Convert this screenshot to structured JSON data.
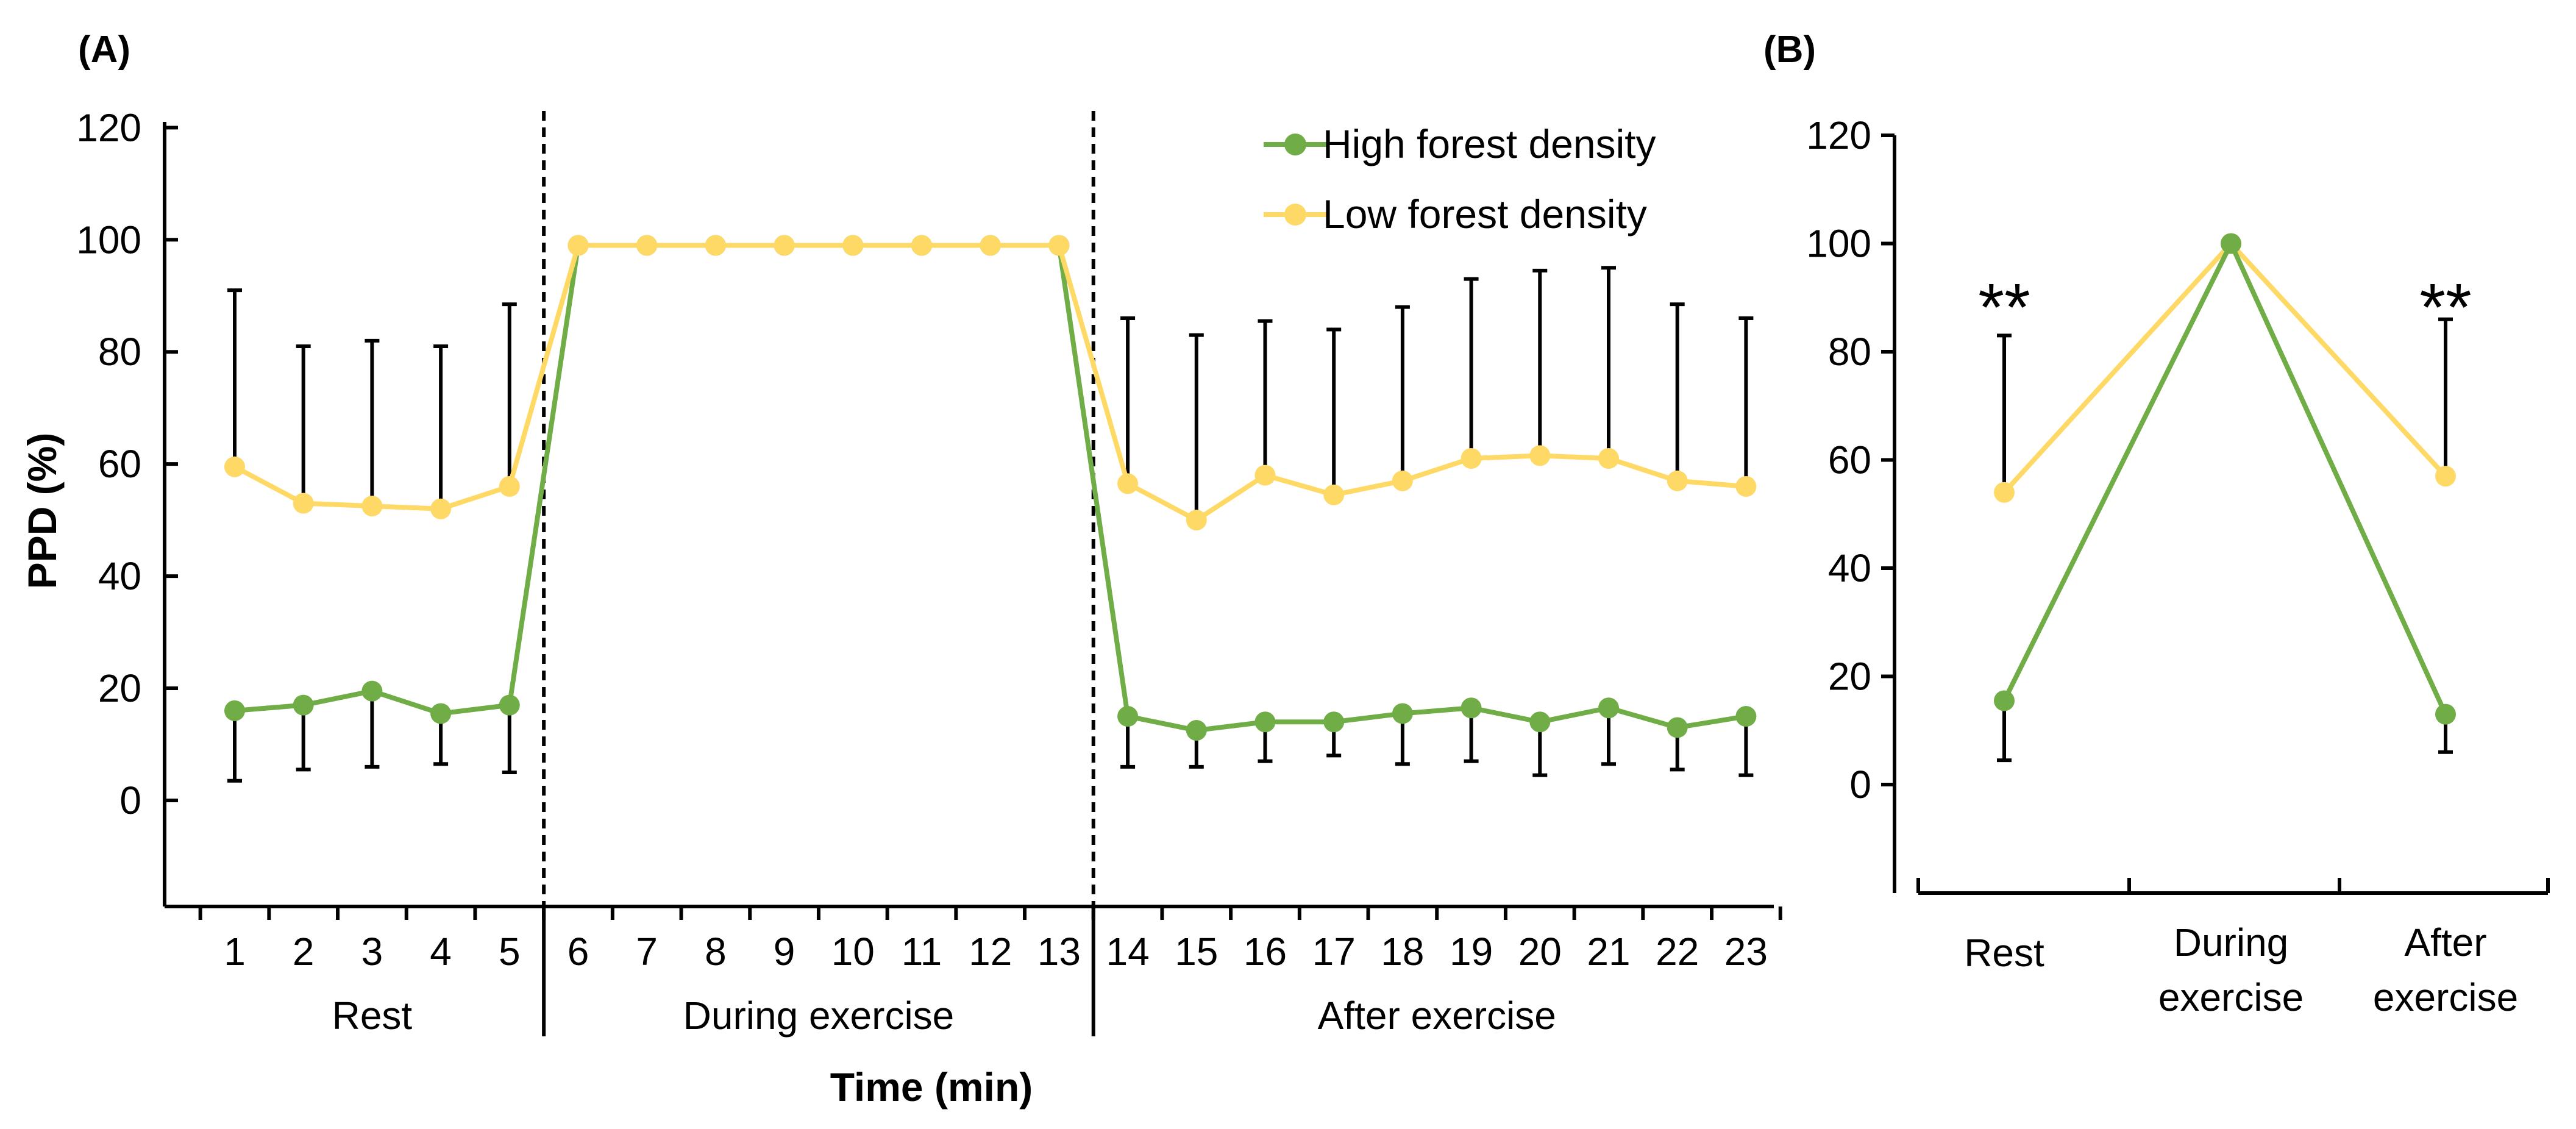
{
  "chart_data": [
    {
      "panel": "(A)",
      "type": "line",
      "ylabel": "PPD (%)",
      "xlabel": "Time (min)",
      "ylim": [
        -20,
        120
      ],
      "yticks": [
        0,
        20,
        40,
        60,
        80,
        100,
        120
      ],
      "x": [
        1,
        2,
        3,
        4,
        5,
        6,
        7,
        8,
        9,
        10,
        11,
        12,
        13,
        14,
        15,
        16,
        17,
        18,
        19,
        20,
        21,
        22,
        23
      ],
      "tick_labels": [
        "1",
        "2",
        "3",
        "4",
        "5",
        "6",
        "7",
        "8",
        "9",
        "10",
        "11",
        "12",
        "13",
        "14",
        "15",
        "16",
        "17",
        "18",
        "19",
        "20",
        "21",
        "22",
        "23"
      ],
      "phases": [
        {
          "label": "Rest",
          "from": 1,
          "to": 5
        },
        {
          "label": "During exercise",
          "from": 6,
          "to": 13
        },
        {
          "label": "After exercise",
          "from": 14,
          "to": 23
        }
      ],
      "legend": {
        "position": "top-right"
      },
      "series": [
        {
          "name": "High forest density",
          "color": "#70ad47",
          "values": [
            16,
            17,
            19.5,
            15.5,
            17,
            99,
            99,
            99,
            99,
            99,
            99,
            99,
            99,
            15,
            12.5,
            14,
            14,
            15.5,
            16.5,
            14,
            16.5,
            13,
            15
          ],
          "error_lower": [
            3.5,
            5.5,
            6,
            6.5,
            5,
            null,
            null,
            null,
            null,
            null,
            null,
            null,
            null,
            6,
            6,
            7,
            8,
            6.5,
            7,
            4.5,
            6.5,
            5.5,
            4.5
          ]
        },
        {
          "name": "Low forest density",
          "color": "#ffd966",
          "values": [
            59.5,
            53,
            52.5,
            52,
            56,
            99,
            99,
            99,
            99,
            99,
            99,
            99,
            99,
            56.5,
            50,
            58,
            54.5,
            57,
            61,
            61.5,
            61,
            57,
            56
          ],
          "error_upper": [
            91,
            81,
            82,
            81,
            88.5,
            null,
            null,
            null,
            null,
            null,
            null,
            null,
            null,
            86,
            83,
            85.5,
            84,
            88,
            93,
            94.5,
            95,
            88.5,
            86
          ]
        }
      ]
    },
    {
      "panel": "(B)",
      "type": "line",
      "ylim": [
        -20,
        120
      ],
      "yticks": [
        0,
        20,
        40,
        60,
        80,
        100,
        120
      ],
      "categories": [
        "Rest",
        "During\nexercise",
        "After\nexercise"
      ],
      "series": [
        {
          "name": "High forest density",
          "color": "#70ad47",
          "values": [
            15.5,
            100,
            13
          ],
          "error_lower": [
            4.5,
            null,
            6
          ]
        },
        {
          "name": "Low forest density",
          "color": "#ffd966",
          "values": [
            54,
            100,
            57
          ],
          "error_upper": [
            83,
            null,
            86
          ]
        }
      ],
      "annotations": [
        "**",
        null,
        "**"
      ]
    }
  ]
}
